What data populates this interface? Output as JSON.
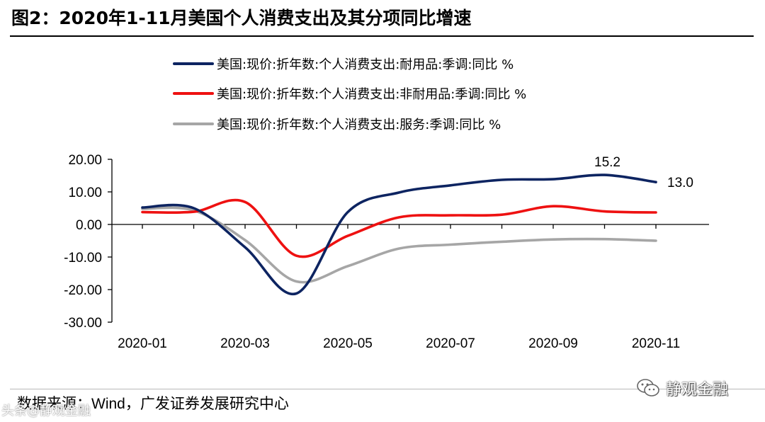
{
  "header": {
    "title": "图2：2020年1-11月美国个人消费支出及其分项同比增速"
  },
  "footer": {
    "source_prefix": "数据来源：",
    "source_wind": "Wind",
    "source_suffix": "，广发证券发展研究中心",
    "watermark_right": "静观金融",
    "watermark_left": "头条@静观金融"
  },
  "chart_data": {
    "type": "line",
    "title": "",
    "xlabel": "",
    "ylabel": "",
    "x": [
      "2020-01",
      "2020-02",
      "2020-03",
      "2020-04",
      "2020-05",
      "2020-06",
      "2020-07",
      "2020-08",
      "2020-09",
      "2020-10",
      "2020-11"
    ],
    "x_tick_labels": [
      "2020-01",
      "2020-03",
      "2020-05",
      "2020-07",
      "2020-09",
      "2020-11"
    ],
    "ylim": [
      -30,
      20
    ],
    "y_ticks": [
      20,
      10,
      0,
      -10,
      -20,
      -30
    ],
    "y_tick_labels": [
      "20.00",
      "10.00",
      "0.00",
      "-10.00",
      "-20.00",
      "-30.00"
    ],
    "series": [
      {
        "name": "美国:现价:折年数:个人消费支出:耐用品:季调:同比 %",
        "color": "#0d2461",
        "values": [
          5.2,
          5.0,
          -7.0,
          -21.2,
          3.8,
          9.8,
          12.0,
          13.7,
          13.9,
          15.2,
          13.0
        ]
      },
      {
        "name": "美国:现价:折年数:个人消费支出:非耐用品:季调:同比 %",
        "color": "#ee1111",
        "values": [
          3.8,
          3.9,
          6.9,
          -9.6,
          -3.5,
          2.2,
          2.8,
          3.0,
          5.6,
          4.0,
          3.7
        ]
      },
      {
        "name": "美国:现价:折年数:个人消费支出:服务:季调:同比 %",
        "color": "#a6a6a6",
        "values": [
          4.8,
          4.3,
          -4.8,
          -17.5,
          -12.8,
          -7.4,
          -6.2,
          -5.3,
          -4.6,
          -4.5,
          -5.0
        ]
      }
    ],
    "annotations": [
      {
        "text": "15.2",
        "series": 0,
        "index": 9
      },
      {
        "text": "13.0",
        "series": 0,
        "index": 10
      }
    ],
    "legend_position": "top",
    "grid": false
  }
}
